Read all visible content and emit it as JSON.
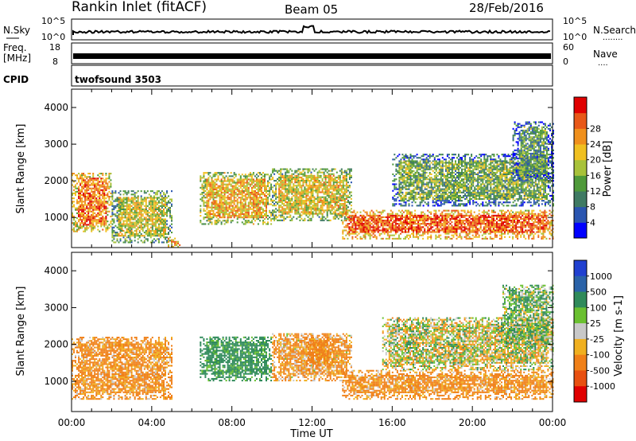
{
  "header": {
    "station": "Rankin Inlet (fitACF)",
    "beam": "Beam 05",
    "date": "28/Feb/2016"
  },
  "noise_panel": {
    "left_label": "N.Sky",
    "right_label": "N.Search",
    "left_ticks": [
      "10^5",
      "10^0"
    ],
    "right_ticks": [
      "10^5",
      "10^0"
    ],
    "right_legend_dots": "........"
  },
  "freq_panel": {
    "left_label_1": "Freq.",
    "left_label_2": "[MHz]",
    "right_label": "Nave",
    "left_ticks": [
      "18",
      "8"
    ],
    "right_ticks": [
      "60",
      "0"
    ],
    "right_legend_dots": "...."
  },
  "cpid_panel": {
    "label": "CPID",
    "program": "twofsound 3503"
  },
  "colors": {
    "power_scale": [
      "#0000ff",
      "#2a55b0",
      "#3f7a63",
      "#4f9a3a",
      "#a8c23a",
      "#f0c020",
      "#f0901c",
      "#e85818",
      "#e00000"
    ],
    "velocity_scale": [
      "#2040d0",
      "#2a62a8",
      "#2f8a5a",
      "#6ac030",
      "#c8c8c8",
      "#f0b020",
      "#f08018",
      "#e85010",
      "#e00000"
    ]
  },
  "chart_data": [
    {
      "type": "heatmap",
      "name_label": "Power [dB]",
      "ylabel": "Slant Range [km]",
      "xlabel": "Time UT",
      "x_ticks": [
        "00:00",
        "04:00",
        "08:00",
        "12:00",
        "16:00",
        "20:00",
        "00:00"
      ],
      "y_ticks": [
        1000,
        2000,
        3000,
        4000
      ],
      "ylim": [
        180,
        4500
      ],
      "colorbar_ticks": [
        "4",
        "8",
        "12",
        "16",
        "20",
        "24",
        "28"
      ],
      "colorbar_range": [
        0,
        30
      ],
      "echo_regions": [
        {
          "t_start": 0.0,
          "t_end": 2.0,
          "r_low": 600,
          "r_high": 2200,
          "level": 24
        },
        {
          "t_start": 2.0,
          "t_end": 5.0,
          "r_low": 300,
          "r_high": 1700,
          "level": 16
        },
        {
          "t_start": 4.8,
          "t_end": 5.4,
          "r_low": 180,
          "r_high": 450,
          "level": 26
        },
        {
          "t_start": 6.4,
          "t_end": 10.0,
          "r_low": 800,
          "r_high": 2200,
          "level": 20
        },
        {
          "t_start": 10.0,
          "t_end": 14.0,
          "r_low": 900,
          "r_high": 2300,
          "level": 18
        },
        {
          "t_start": 13.5,
          "t_end": 24.0,
          "r_low": 400,
          "r_high": 1200,
          "level": 26
        },
        {
          "t_start": 16.0,
          "t_end": 24.0,
          "r_low": 1300,
          "r_high": 2700,
          "level": 12
        },
        {
          "t_start": 22.0,
          "t_end": 24.0,
          "r_low": 2000,
          "r_high": 3600,
          "level": 10
        }
      ]
    },
    {
      "type": "heatmap",
      "name_label": "Velocity [m s-1]",
      "ylabel": "Slant Range [km]",
      "xlabel": "Time UT",
      "x_ticks": [
        "00:00",
        "04:00",
        "08:00",
        "12:00",
        "16:00",
        "20:00",
        "00:00"
      ],
      "y_ticks": [
        1000,
        2000,
        3000,
        4000
      ],
      "ylim": [
        180,
        4500
      ],
      "colorbar_ticks": [
        "1000",
        "500",
        "100",
        "25",
        "-25",
        "-100",
        "-500",
        "-1000"
      ],
      "colorbar_range": [
        1000,
        -1000
      ],
      "echo_regions": [
        {
          "t_start": 0.0,
          "t_end": 5.0,
          "r_low": 500,
          "r_high": 2200,
          "velocity": -150
        },
        {
          "t_start": 6.4,
          "t_end": 10.0,
          "r_low": 1000,
          "r_high": 2200,
          "velocity": 200
        },
        {
          "t_start": 10.0,
          "t_end": 14.0,
          "r_low": 1000,
          "r_high": 2300,
          "velocity": -120
        },
        {
          "t_start": 11.7,
          "t_end": 13.0,
          "r_low": 1400,
          "r_high": 2200,
          "velocity": -200
        },
        {
          "t_start": 13.5,
          "t_end": 24.0,
          "r_low": 500,
          "r_high": 1300,
          "velocity": -150
        },
        {
          "t_start": 15.5,
          "t_end": 24.0,
          "r_low": 1300,
          "r_high": 2700,
          "velocity": 0
        },
        {
          "t_start": 21.5,
          "t_end": 24.0,
          "r_low": 2000,
          "r_high": 3600,
          "velocity": 80
        }
      ]
    }
  ],
  "time_label": "Time UT"
}
